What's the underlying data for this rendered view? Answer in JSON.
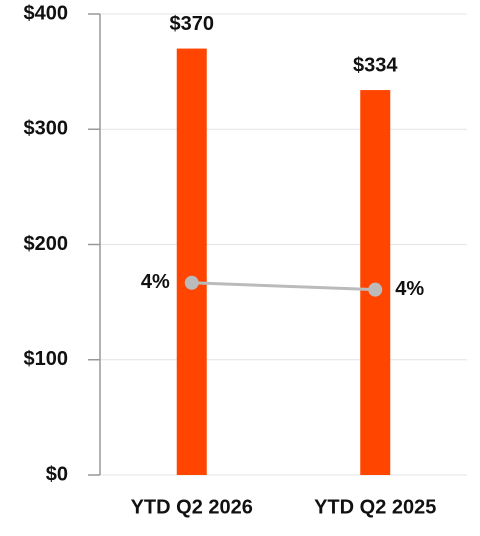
{
  "chart_data": {
    "type": "bar",
    "categories": [
      "YTD Q2 2026",
      "YTD Q2 2025"
    ],
    "series": [
      {
        "type": "bar",
        "color": "#ff4500",
        "values": [
          370,
          334
        ],
        "value_labels": [
          "$370",
          "$334"
        ]
      },
      {
        "type": "line",
        "axis": "y2",
        "color": "#bbbbbb",
        "values": [
          4.17,
          4.02
        ],
        "value_labels": [
          "4%",
          "4%"
        ]
      }
    ],
    "ylim": [
      0,
      400
    ],
    "yticks": [
      {
        "value": 0,
        "label": "$0"
      },
      {
        "value": 100,
        "label": "$100"
      },
      {
        "value": 200,
        "label": "$200"
      },
      {
        "value": 300,
        "label": "$300"
      },
      {
        "value": 400,
        "label": "$400"
      }
    ],
    "y2lim": [
      0,
      10
    ],
    "grid": true
  }
}
